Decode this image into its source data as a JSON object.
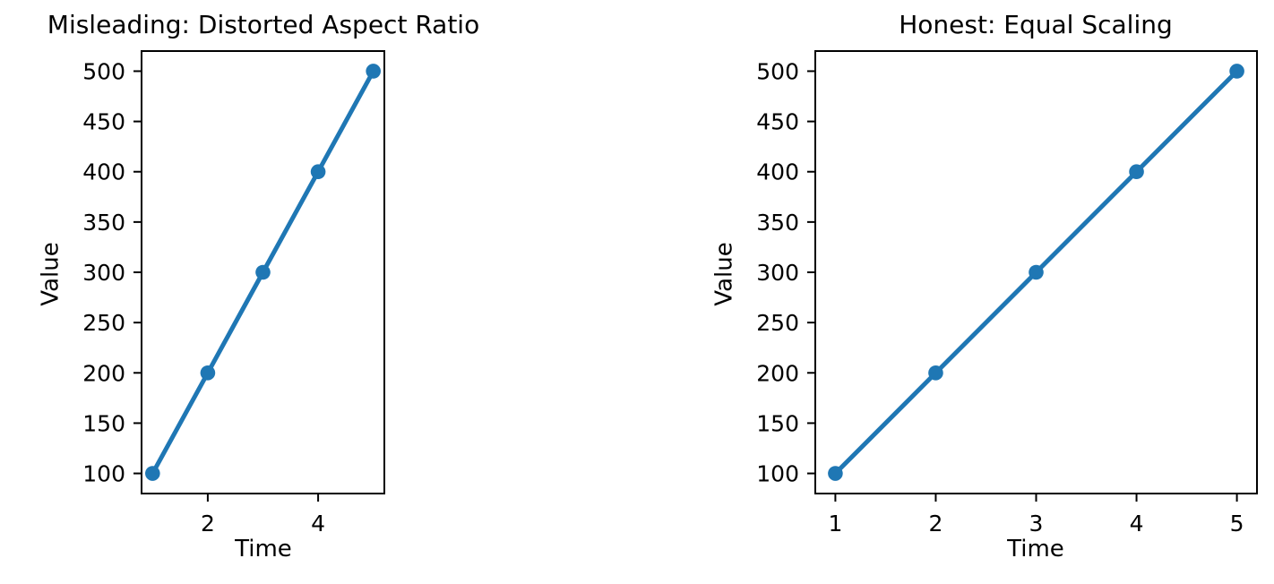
{
  "figure": {
    "background": "#ffffff",
    "text_color": "#000000"
  },
  "chart_data": [
    {
      "type": "line",
      "title": "Misleading: Distorted Aspect Ratio",
      "xlabel": "Time",
      "ylabel": "Value",
      "x": [
        1,
        2,
        3,
        4,
        5
      ],
      "y": [
        100,
        200,
        300,
        400,
        500
      ],
      "xlim": [
        0.8,
        5.2
      ],
      "ylim": [
        80,
        520
      ],
      "xticks": [
        2,
        4
      ],
      "yticks": [
        100,
        150,
        200,
        250,
        300,
        350,
        400,
        450,
        500
      ],
      "line_color": "#1f77b4",
      "marker": "circle",
      "grid": false,
      "legend_position": "none"
    },
    {
      "type": "line",
      "title": "Honest: Equal Scaling",
      "xlabel": "Time",
      "ylabel": "Value",
      "x": [
        1,
        2,
        3,
        4,
        5
      ],
      "y": [
        100,
        200,
        300,
        400,
        500
      ],
      "xlim": [
        0.8,
        5.2
      ],
      "ylim": [
        80,
        520
      ],
      "xticks": [
        1,
        2,
        3,
        4,
        5
      ],
      "yticks": [
        100,
        150,
        200,
        250,
        300,
        350,
        400,
        450,
        500
      ],
      "line_color": "#1f77b4",
      "marker": "circle",
      "grid": false,
      "legend_position": "none"
    }
  ]
}
